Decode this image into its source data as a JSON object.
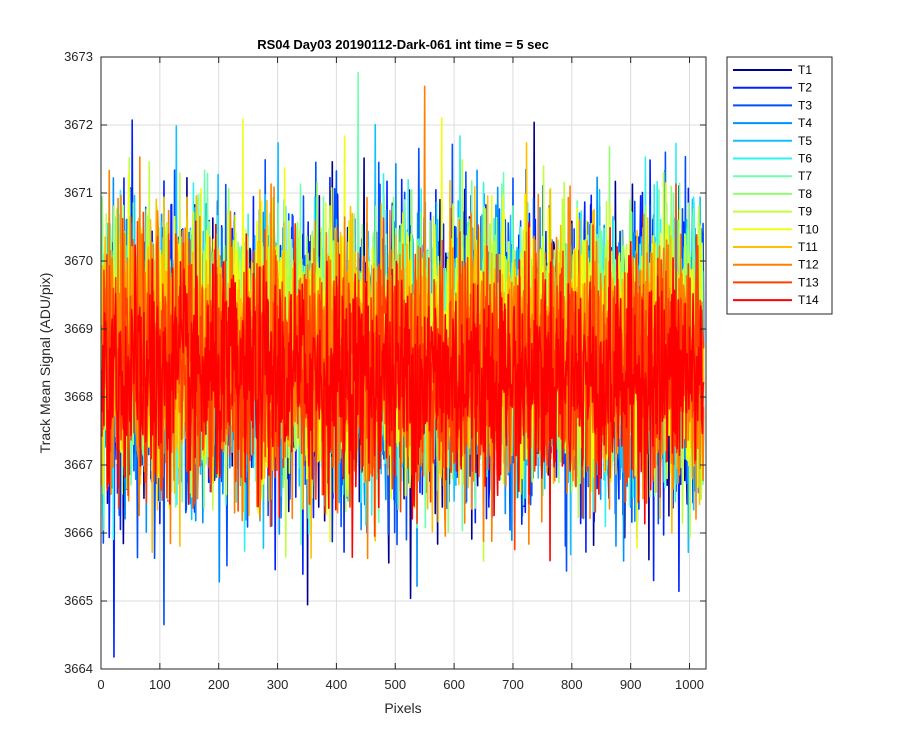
{
  "chart_data": {
    "type": "line",
    "title": "RS04 Day03 20190112-Dark-061 int time = 5 sec",
    "xlabel": "Pixels",
    "ylabel": "Track Mean Signal (ADU/pix)",
    "xlim": [
      0,
      1028
    ],
    "ylim": [
      3664,
      3673
    ],
    "x_ticks": [
      0,
      100,
      200,
      300,
      400,
      500,
      600,
      700,
      800,
      900,
      1000
    ],
    "y_ticks": [
      3664,
      3665,
      3666,
      3667,
      3668,
      3669,
      3670,
      3671,
      3672,
      3673
    ],
    "grid": true,
    "legend_position": "outside-right",
    "n_points": 1024,
    "series": [
      {
        "name": "T1",
        "color": "#00008f",
        "mean": 3668.6,
        "std": 1.05
      },
      {
        "name": "T2",
        "color": "#0020ff",
        "mean": 3668.6,
        "std": 1.1
      },
      {
        "name": "T3",
        "color": "#0050ff",
        "mean": 3668.6,
        "std": 1.05
      },
      {
        "name": "T4",
        "color": "#0090ff",
        "mean": 3668.6,
        "std": 1.0
      },
      {
        "name": "T5",
        "color": "#10c0ff",
        "mean": 3668.6,
        "std": 0.95
      },
      {
        "name": "T6",
        "color": "#30f0f0",
        "mean": 3668.7,
        "std": 0.95
      },
      {
        "name": "T7",
        "color": "#70ffb0",
        "mean": 3668.7,
        "std": 0.95
      },
      {
        "name": "T8",
        "color": "#90ff70",
        "mean": 3668.8,
        "std": 0.95
      },
      {
        "name": "T9",
        "color": "#c0ff40",
        "mean": 3668.8,
        "std": 0.95
      },
      {
        "name": "T10",
        "color": "#f0ff10",
        "mean": 3668.7,
        "std": 0.95
      },
      {
        "name": "T11",
        "color": "#ffc000",
        "mean": 3668.6,
        "std": 0.95
      },
      {
        "name": "T12",
        "color": "#ff8000",
        "mean": 3668.5,
        "std": 0.95
      },
      {
        "name": "T13",
        "color": "#ff4000",
        "mean": 3668.4,
        "std": 0.9
      },
      {
        "name": "T14",
        "color": "#ff0000",
        "mean": 3668.3,
        "std": 0.8
      }
    ]
  }
}
